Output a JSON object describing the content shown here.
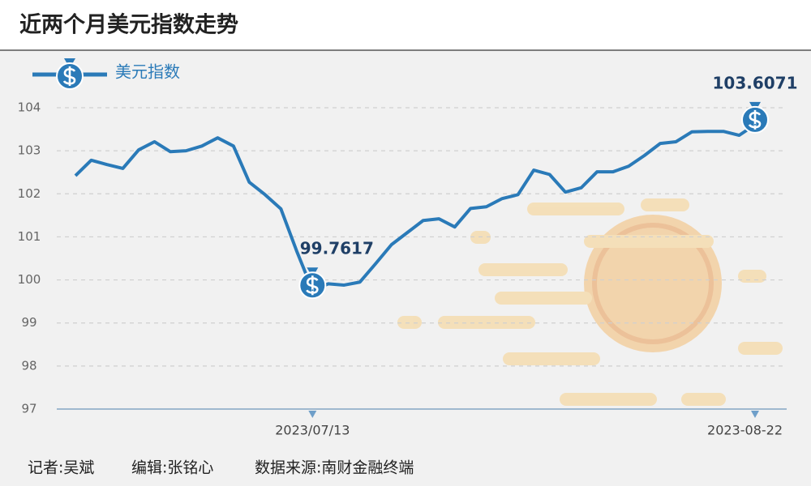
{
  "chart_data": {
    "type": "line",
    "title": "近两个月美元指数走势",
    "categories": [
      null,
      null,
      null,
      null,
      null,
      null,
      null,
      null,
      null,
      null,
      null,
      null,
      null,
      null,
      null,
      "2023/07/13",
      null,
      null,
      null,
      null,
      null,
      null,
      null,
      null,
      null,
      null,
      null,
      null,
      null,
      null,
      null,
      null,
      null,
      null,
      null,
      null,
      null,
      null,
      null,
      null,
      null,
      null,
      null,
      "2023-08-22"
    ],
    "series": [
      {
        "name": "美元指数",
        "color": "#2a7ab8",
        "values": [
          102.42,
          102.78,
          102.68,
          102.59,
          103.02,
          103.21,
          102.98,
          103.0,
          103.11,
          103.3,
          103.11,
          102.27,
          101.98,
          101.65,
          100.67,
          99.7617,
          99.91,
          99.88,
          99.95,
          100.38,
          100.82,
          101.1,
          101.38,
          101.42,
          101.23,
          101.66,
          101.7,
          101.89,
          101.98,
          102.55,
          102.45,
          102.04,
          102.14,
          102.51,
          102.51,
          102.64,
          102.89,
          103.17,
          103.21,
          103.44,
          103.45,
          103.45,
          103.36,
          103.6071
        ],
        "value_labels": [
          null,
          null,
          null,
          null,
          null,
          null,
          null,
          null,
          null,
          null,
          null,
          null,
          null,
          null,
          null,
          "99.7617",
          null,
          null,
          null,
          null,
          null,
          null,
          null,
          null,
          null,
          null,
          null,
          null,
          null,
          null,
          null,
          null,
          null,
          null,
          null,
          null,
          null,
          null,
          null,
          null,
          null,
          null,
          null,
          "103.6071"
        ]
      }
    ],
    "ylim": [
      97,
      104
    ],
    "yticks": [
      97,
      98,
      99,
      100,
      101,
      102,
      103,
      104
    ],
    "grid": true,
    "footer": [
      "记者:吴斌",
      "编辑:张铭心",
      "数据来源:南财金融终端"
    ]
  }
}
